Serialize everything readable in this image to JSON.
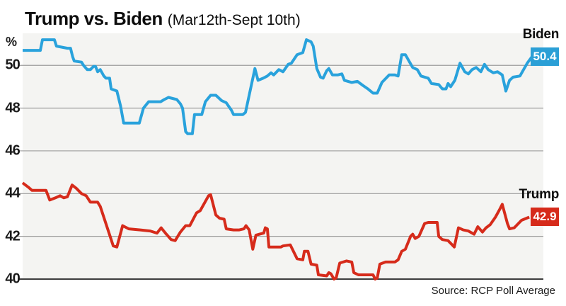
{
  "title": {
    "main": "Trump vs. Biden",
    "subtitle": "(Mar12th-Sept 10th)"
  },
  "source": "Source: RCP Poll Average",
  "y_axis": {
    "unit": "%",
    "ticks": [
      50,
      48,
      46,
      44,
      42,
      40
    ]
  },
  "series_labels": {
    "biden": {
      "name": "Biden",
      "value": "50.4"
    },
    "trump": {
      "name": "Trump",
      "value": "42.9"
    }
  },
  "colors": {
    "biden": "#29a2dc",
    "trump": "#d62b1b",
    "biden_badge": "#2b9fd6",
    "trump_badge": "#d62b1b",
    "plot_bg": "#f4f4f2",
    "grid": "#9c9c9c",
    "axis": "#3d3d3d"
  },
  "chart_data": {
    "type": "line",
    "title": "Trump vs. Biden (Mar12th-Sept 10th)",
    "xlabel": "",
    "ylabel": "%",
    "x_range": [
      "Mar 12th",
      "Sept 10th"
    ],
    "ylim": [
      40,
      51.5
    ],
    "grid": true,
    "legend_position": "right-edge-labels",
    "series": [
      {
        "name": "Biden",
        "color": "#29a2dc",
        "final_value": 50.4,
        "points": [
          [
            0,
            50.7
          ],
          [
            3.4,
            50.7
          ],
          [
            3.8,
            51.2
          ],
          [
            6.1,
            51.2
          ],
          [
            6.5,
            50.9
          ],
          [
            8.6,
            50.8
          ],
          [
            9.2,
            50.8
          ],
          [
            9.6,
            50.4
          ],
          [
            9.9,
            50.2
          ],
          [
            11.3,
            50.15
          ],
          [
            11.7,
            50.0
          ],
          [
            12.4,
            49.8
          ],
          [
            13.0,
            49.8
          ],
          [
            13.6,
            49.95
          ],
          [
            14.0,
            49.95
          ],
          [
            14.4,
            49.7
          ],
          [
            14.9,
            49.8
          ],
          [
            15.6,
            49.5
          ],
          [
            16.0,
            49.4
          ],
          [
            16.7,
            49.4
          ],
          [
            17.0,
            48.9
          ],
          [
            18.1,
            48.8
          ],
          [
            18.8,
            48.1
          ],
          [
            19.4,
            47.3
          ],
          [
            22.4,
            47.3
          ],
          [
            23.2,
            48.0
          ],
          [
            24.2,
            48.3
          ],
          [
            26.5,
            48.3
          ],
          [
            27.2,
            48.4
          ],
          [
            28.0,
            48.5
          ],
          [
            29.6,
            48.4
          ],
          [
            30.3,
            48.2
          ],
          [
            30.7,
            48.0
          ],
          [
            31.3,
            46.9
          ],
          [
            31.7,
            46.8
          ],
          [
            32.6,
            46.8
          ],
          [
            33.0,
            47.7
          ],
          [
            34.4,
            47.7
          ],
          [
            35.1,
            48.3
          ],
          [
            36.1,
            48.6
          ],
          [
            37.1,
            48.6
          ],
          [
            38.2,
            48.35
          ],
          [
            39.1,
            48.25
          ],
          [
            40.1,
            47.9
          ],
          [
            40.5,
            47.7
          ],
          [
            42.3,
            47.7
          ],
          [
            42.8,
            47.8
          ],
          [
            44.6,
            49.85
          ],
          [
            45.2,
            49.3
          ],
          [
            46.2,
            49.4
          ],
          [
            47.0,
            49.5
          ],
          [
            47.7,
            49.65
          ],
          [
            48.2,
            49.55
          ],
          [
            49.2,
            49.8
          ],
          [
            50.0,
            49.7
          ],
          [
            51.0,
            50.05
          ],
          [
            51.6,
            50.1
          ],
          [
            52.7,
            50.5
          ],
          [
            53.8,
            50.6
          ],
          [
            54.5,
            51.2
          ],
          [
            55.4,
            51.1
          ],
          [
            55.8,
            50.9
          ],
          [
            56.5,
            49.85
          ],
          [
            57.2,
            49.45
          ],
          [
            57.7,
            49.4
          ],
          [
            58.4,
            49.75
          ],
          [
            58.8,
            49.85
          ],
          [
            59.5,
            49.55
          ],
          [
            60.5,
            49.55
          ],
          [
            61.3,
            49.6
          ],
          [
            61.8,
            49.3
          ],
          [
            63.2,
            49.2
          ],
          [
            64.3,
            49.25
          ],
          [
            65.4,
            49.05
          ],
          [
            66.3,
            48.9
          ],
          [
            67.3,
            48.7
          ],
          [
            68.1,
            48.7
          ],
          [
            69.0,
            49.2
          ],
          [
            70.4,
            49.55
          ],
          [
            71.5,
            49.55
          ],
          [
            72.1,
            49.5
          ],
          [
            72.8,
            50.5
          ],
          [
            73.5,
            50.5
          ],
          [
            74.2,
            50.2
          ],
          [
            74.9,
            49.9
          ],
          [
            75.8,
            49.8
          ],
          [
            76.5,
            49.5
          ],
          [
            77.9,
            49.4
          ],
          [
            78.5,
            49.15
          ],
          [
            79.9,
            49.1
          ],
          [
            80.6,
            48.9
          ],
          [
            81.3,
            48.9
          ],
          [
            81.7,
            49.15
          ],
          [
            82.2,
            49.0
          ],
          [
            83.0,
            49.3
          ],
          [
            84.0,
            50.1
          ],
          [
            84.9,
            49.7
          ],
          [
            85.6,
            49.6
          ],
          [
            86.3,
            49.8
          ],
          [
            87.1,
            49.9
          ],
          [
            88.0,
            49.7
          ],
          [
            88.7,
            50.05
          ],
          [
            89.4,
            49.8
          ],
          [
            90.4,
            49.65
          ],
          [
            91.2,
            49.7
          ],
          [
            92.1,
            49.55
          ],
          [
            92.8,
            48.8
          ],
          [
            93.5,
            49.3
          ],
          [
            94.2,
            49.45
          ],
          [
            95.5,
            49.5
          ],
          [
            96.2,
            49.8
          ],
          [
            96.9,
            50.1
          ],
          [
            97.8,
            50.4
          ]
        ]
      },
      {
        "name": "Trump",
        "color": "#d62b1b",
        "final_value": 42.9,
        "points": [
          [
            0,
            44.5
          ],
          [
            1.1,
            44.3
          ],
          [
            1.8,
            44.15
          ],
          [
            4.5,
            44.15
          ],
          [
            5.2,
            43.7
          ],
          [
            6.3,
            43.8
          ],
          [
            7.2,
            43.9
          ],
          [
            7.9,
            43.8
          ],
          [
            8.6,
            43.85
          ],
          [
            9.5,
            44.4
          ],
          [
            10.3,
            44.25
          ],
          [
            11.3,
            44.0
          ],
          [
            12.2,
            43.9
          ],
          [
            13.0,
            43.6
          ],
          [
            14.4,
            43.6
          ],
          [
            14.9,
            43.4
          ],
          [
            17.4,
            41.55
          ],
          [
            18.1,
            41.5
          ],
          [
            19.2,
            42.5
          ],
          [
            20.4,
            42.35
          ],
          [
            22.6,
            42.3
          ],
          [
            24.5,
            42.25
          ],
          [
            25.8,
            42.15
          ],
          [
            26.6,
            42.4
          ],
          [
            27.6,
            42.1
          ],
          [
            28.5,
            41.85
          ],
          [
            29.3,
            41.8
          ],
          [
            30.3,
            42.2
          ],
          [
            31.3,
            42.5
          ],
          [
            32.1,
            42.5
          ],
          [
            33.4,
            43.1
          ],
          [
            34.1,
            43.2
          ],
          [
            35.7,
            43.9
          ],
          [
            36.1,
            43.95
          ],
          [
            37.1,
            43.0
          ],
          [
            37.8,
            42.85
          ],
          [
            38.7,
            42.8
          ],
          [
            39.1,
            42.35
          ],
          [
            40.5,
            42.3
          ],
          [
            41.6,
            42.3
          ],
          [
            42.5,
            42.35
          ],
          [
            42.9,
            42.5
          ],
          [
            43.5,
            42.3
          ],
          [
            44.2,
            41.4
          ],
          [
            44.8,
            42.05
          ],
          [
            45.5,
            42.1
          ],
          [
            46.3,
            42.15
          ],
          [
            46.6,
            42.4
          ],
          [
            47.0,
            42.35
          ],
          [
            47.3,
            41.5
          ],
          [
            49.6,
            41.5
          ],
          [
            50.0,
            41.55
          ],
          [
            51.4,
            41.6
          ],
          [
            52.7,
            40.95
          ],
          [
            53.8,
            40.9
          ],
          [
            54.1,
            41.3
          ],
          [
            54.8,
            41.3
          ],
          [
            55.4,
            40.7
          ],
          [
            56.5,
            40.65
          ],
          [
            56.8,
            40.2
          ],
          [
            58.4,
            40.15
          ],
          [
            58.8,
            40.3
          ],
          [
            59.2,
            40.25
          ],
          [
            59.8,
            40.0
          ],
          [
            60.2,
            40.05
          ],
          [
            60.9,
            40.75
          ],
          [
            62.2,
            40.85
          ],
          [
            63.2,
            40.8
          ],
          [
            63.6,
            40.3
          ],
          [
            64.5,
            40.2
          ],
          [
            67.3,
            40.2
          ],
          [
            67.7,
            40.0
          ],
          [
            68.1,
            40.05
          ],
          [
            68.6,
            40.7
          ],
          [
            69.7,
            40.8
          ],
          [
            71.5,
            40.8
          ],
          [
            72.1,
            40.9
          ],
          [
            72.8,
            41.3
          ],
          [
            73.5,
            41.4
          ],
          [
            74.5,
            42.0
          ],
          [
            74.9,
            42.1
          ],
          [
            75.4,
            41.9
          ],
          [
            76.1,
            42.0
          ],
          [
            77.2,
            42.6
          ],
          [
            77.9,
            42.65
          ],
          [
            79.6,
            42.65
          ],
          [
            79.9,
            42.0
          ],
          [
            80.6,
            41.85
          ],
          [
            81.7,
            41.8
          ],
          [
            82.9,
            41.5
          ],
          [
            83.7,
            42.4
          ],
          [
            84.6,
            42.3
          ],
          [
            85.6,
            42.25
          ],
          [
            86.7,
            42.1
          ],
          [
            87.4,
            42.45
          ],
          [
            88.3,
            42.2
          ],
          [
            89.0,
            42.4
          ],
          [
            89.8,
            42.55
          ],
          [
            90.8,
            42.9
          ],
          [
            91.7,
            43.3
          ],
          [
            92.1,
            43.5
          ],
          [
            93.1,
            42.6
          ],
          [
            93.5,
            42.35
          ],
          [
            94.4,
            42.4
          ],
          [
            95.8,
            42.75
          ],
          [
            97.3,
            42.9
          ]
        ]
      }
    ]
  }
}
